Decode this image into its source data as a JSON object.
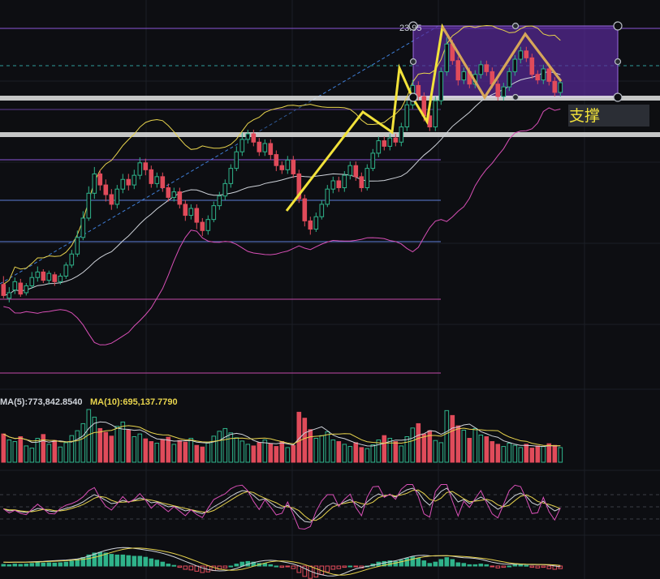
{
  "colors": {
    "background": "#0d0e12",
    "up": "#2fb38a",
    "down": "#e04b5a",
    "ma_yellow": "#e8d44d",
    "ma_white": "#cfd3da",
    "band_pink": "#d84fb6",
    "hline_purple": "#8a55d8",
    "hline_blue": "#5d7fd8",
    "hline_magenta": "#c24aa8",
    "support_zone": "#e6e6e6",
    "pattern_yellow": "#f2e23a",
    "pattern_orange": "#d6a55a",
    "box_fill": "#5a2a9a",
    "grid": "#1c1f26"
  },
  "labels": {
    "price_tag": "23.95",
    "support": "支撑",
    "volume_ma5": "MA(5):773,842.8540",
    "volume_ma10": "MA(10):695,137.7790"
  },
  "chart_data": {
    "type": "candlestick",
    "title": "",
    "candles": [
      [
        27.0,
        26.2,
        27.6,
        26.0
      ],
      [
        26.0,
        26.4,
        26.8,
        25.7
      ],
      [
        26.6,
        27.2,
        27.5,
        26.3
      ],
      [
        27.1,
        26.3,
        27.4,
        26.1
      ],
      [
        26.4,
        26.9,
        27.1,
        26.2
      ],
      [
        26.9,
        27.5,
        27.9,
        26.7
      ],
      [
        27.5,
        27.9,
        28.3,
        27.2
      ],
      [
        27.9,
        27.3,
        28.1,
        27.1
      ],
      [
        27.3,
        27.8,
        28.0,
        27.0
      ],
      [
        27.7,
        27.2,
        27.9,
        26.9
      ],
      [
        27.2,
        27.6,
        27.8,
        27.0
      ],
      [
        27.6,
        28.4,
        28.6,
        27.4
      ],
      [
        28.4,
        29.2,
        29.5,
        28.2
      ],
      [
        29.2,
        30.4,
        30.9,
        29.0
      ],
      [
        30.4,
        31.8,
        32.3,
        30.2
      ],
      [
        31.8,
        33.6,
        34.1,
        31.6
      ],
      [
        33.6,
        35.0,
        35.5,
        33.2
      ],
      [
        35.0,
        34.2,
        35.3,
        33.8
      ],
      [
        34.2,
        33.5,
        34.6,
        33.0
      ],
      [
        33.5,
        32.8,
        33.9,
        32.4
      ],
      [
        32.8,
        33.9,
        34.2,
        32.5
      ],
      [
        33.9,
        34.6,
        35.0,
        33.6
      ],
      [
        34.6,
        34.2,
        35.0,
        33.8
      ],
      [
        34.2,
        34.9,
        35.3,
        33.9
      ],
      [
        34.9,
        35.8,
        36.2,
        34.6
      ],
      [
        35.8,
        35.3,
        36.1,
        34.9
      ],
      [
        35.3,
        34.3,
        35.6,
        34.0
      ],
      [
        34.3,
        34.8,
        35.1,
        34.0
      ],
      [
        34.8,
        34.0,
        35.1,
        33.7
      ],
      [
        34.0,
        33.3,
        34.3,
        33.0
      ],
      [
        33.3,
        33.7,
        34.0,
        33.0
      ],
      [
        33.7,
        32.8,
        34.0,
        32.5
      ],
      [
        32.8,
        32.0,
        33.1,
        31.6
      ],
      [
        32.0,
        32.5,
        32.8,
        31.7
      ],
      [
        32.5,
        31.5,
        32.8,
        31.0
      ],
      [
        31.5,
        30.9,
        31.8,
        30.5
      ],
      [
        30.9,
        31.7,
        32.0,
        30.6
      ],
      [
        31.7,
        32.7,
        33.0,
        31.5
      ],
      [
        32.7,
        33.4,
        33.7,
        32.4
      ],
      [
        33.4,
        34.3,
        34.6,
        33.1
      ],
      [
        34.3,
        35.4,
        35.7,
        34.0
      ],
      [
        35.4,
        36.6,
        37.0,
        35.2
      ],
      [
        36.6,
        37.5,
        38.0,
        36.3
      ],
      [
        37.5,
        37.9,
        38.2,
        37.2
      ],
      [
        37.9,
        37.3,
        38.2,
        37.0
      ],
      [
        37.3,
        36.6,
        37.6,
        36.3
      ],
      [
        36.6,
        37.2,
        37.5,
        36.3
      ],
      [
        37.2,
        36.4,
        37.5,
        36.0
      ],
      [
        36.4,
        35.6,
        36.7,
        35.2
      ],
      [
        35.6,
        35.3,
        35.9,
        35.0
      ],
      [
        35.3,
        36.0,
        36.3,
        35.0
      ],
      [
        36.0,
        35.0,
        36.3,
        34.7
      ],
      [
        35.0,
        33.2,
        35.3,
        32.9
      ],
      [
        33.2,
        31.6,
        33.5,
        31.2
      ],
      [
        31.6,
        31.0,
        31.9,
        30.6
      ],
      [
        31.0,
        31.9,
        32.2,
        30.8
      ],
      [
        31.9,
        32.8,
        33.1,
        31.7
      ],
      [
        32.8,
        33.9,
        34.2,
        32.6
      ],
      [
        33.9,
        34.5,
        34.8,
        33.6
      ],
      [
        34.5,
        34.0,
        34.8,
        33.7
      ],
      [
        34.0,
        34.9,
        35.2,
        33.7
      ],
      [
        34.9,
        35.6,
        35.9,
        34.6
      ],
      [
        35.6,
        34.8,
        35.9,
        34.5
      ],
      [
        34.8,
        34.0,
        35.1,
        33.7
      ],
      [
        34.0,
        35.4,
        35.7,
        33.8
      ],
      [
        35.4,
        36.5,
        36.8,
        35.2
      ],
      [
        36.5,
        37.4,
        37.7,
        36.2
      ],
      [
        37.4,
        37.0,
        37.7,
        36.7
      ],
      [
        37.0,
        37.6,
        37.9,
        36.7
      ],
      [
        37.6,
        37.3,
        37.9,
        37.0
      ],
      [
        37.3,
        38.4,
        38.7,
        37.0
      ],
      [
        38.4,
        40.0,
        40.3,
        38.1
      ],
      [
        40.0,
        41.4,
        41.8,
        39.7
      ],
      [
        41.4,
        40.6,
        41.7,
        40.3
      ],
      [
        40.6,
        39.2,
        40.9,
        38.8
      ],
      [
        39.2,
        38.4,
        39.5,
        38.1
      ],
      [
        38.4,
        40.3,
        40.6,
        38.1
      ],
      [
        40.3,
        42.4,
        42.7,
        40.0
      ],
      [
        42.4,
        44.4,
        44.9,
        42.1
      ],
      [
        44.4,
        43.2,
        44.7,
        42.9
      ],
      [
        43.2,
        41.8,
        43.5,
        41.4
      ],
      [
        41.8,
        42.4,
        42.7,
        41.5
      ],
      [
        42.4,
        41.5,
        42.7,
        41.2
      ],
      [
        41.5,
        42.2,
        42.5,
        41.2
      ],
      [
        42.2,
        42.9,
        43.2,
        41.9
      ],
      [
        42.9,
        42.4,
        43.2,
        42.1
      ],
      [
        42.4,
        41.5,
        42.7,
        41.2
      ],
      [
        41.5,
        40.6,
        41.8,
        40.3
      ],
      [
        40.6,
        41.3,
        41.6,
        40.3
      ],
      [
        41.3,
        42.4,
        42.7,
        41.0
      ],
      [
        42.4,
        43.3,
        43.6,
        42.1
      ],
      [
        43.3,
        43.9,
        44.2,
        43.0
      ],
      [
        43.9,
        43.4,
        44.2,
        43.1
      ],
      [
        43.4,
        42.2,
        43.7,
        41.9
      ],
      [
        42.2,
        41.8,
        42.5,
        41.5
      ],
      [
        41.8,
        42.6,
        42.9,
        41.5
      ],
      [
        42.6,
        41.7,
        42.9,
        41.4
      ],
      [
        41.7,
        40.9,
        42.0,
        40.6
      ],
      [
        40.9,
        41.6,
        41.9,
        40.6
      ]
    ],
    "volume": [
      52,
      41,
      38,
      47,
      30,
      26,
      44,
      51,
      33,
      40,
      28,
      36,
      49,
      58,
      71,
      97,
      83,
      62,
      55,
      48,
      66,
      74,
      59,
      47,
      52,
      43,
      38,
      35,
      42,
      46,
      33,
      40,
      37,
      44,
      31,
      28,
      36,
      48,
      57,
      62,
      54,
      45,
      39,
      33,
      30,
      36,
      41,
      34,
      29,
      38,
      27,
      31,
      92,
      81,
      60,
      44,
      49,
      56,
      41,
      38,
      33,
      29,
      36,
      27,
      25,
      32,
      41,
      49,
      44,
      38,
      30,
      47,
      63,
      71,
      52,
      58,
      40,
      36,
      95,
      86,
      67,
      59,
      44,
      62,
      50,
      47,
      38,
      33,
      29,
      35,
      31,
      27,
      33,
      26,
      30,
      29,
      34,
      31,
      27
    ],
    "kdj": [
      0.45,
      0.4,
      0.42,
      0.38,
      0.36,
      0.4,
      0.46,
      0.44,
      0.4,
      0.38,
      0.42,
      0.46,
      0.5,
      0.55,
      0.62,
      0.72,
      0.8,
      0.74,
      0.66,
      0.58,
      0.6,
      0.66,
      0.62,
      0.66,
      0.72,
      0.68,
      0.6,
      0.62,
      0.56,
      0.5,
      0.52,
      0.46,
      0.4,
      0.43,
      0.37,
      0.33,
      0.4,
      0.5,
      0.58,
      0.66,
      0.76,
      0.84,
      0.9,
      0.88,
      0.78,
      0.66,
      0.7,
      0.6,
      0.5,
      0.46,
      0.54,
      0.42,
      0.26,
      0.14,
      0.12,
      0.24,
      0.38,
      0.52,
      0.6,
      0.54,
      0.62,
      0.68,
      0.58,
      0.48,
      0.62,
      0.74,
      0.82,
      0.76,
      0.8,
      0.74,
      0.84,
      0.92,
      0.96,
      0.86,
      0.66,
      0.54,
      0.72,
      0.88,
      0.96,
      0.8,
      0.62,
      0.68,
      0.58,
      0.66,
      0.74,
      0.66,
      0.54,
      0.44,
      0.52,
      0.66,
      0.78,
      0.84,
      0.76,
      0.6,
      0.54,
      0.64,
      0.5,
      0.4,
      0.46
    ],
    "macd": [
      0.05,
      0.04,
      0.06,
      0.05,
      0.06,
      0.08,
      0.1,
      0.09,
      0.1,
      0.09,
      0.1,
      0.12,
      0.15,
      0.2,
      0.26,
      0.34,
      0.4,
      0.42,
      0.4,
      0.36,
      0.34,
      0.34,
      0.32,
      0.3,
      0.3,
      0.27,
      0.22,
      0.18,
      0.12,
      0.06,
      0.02,
      -0.04,
      -0.1,
      -0.12,
      -0.16,
      -0.2,
      -0.18,
      -0.14,
      -0.1,
      -0.06,
      0.0,
      0.06,
      0.12,
      0.14,
      0.12,
      0.08,
      0.08,
      0.04,
      0.0,
      -0.04,
      -0.02,
      -0.08,
      -0.2,
      -0.32,
      -0.38,
      -0.34,
      -0.26,
      -0.18,
      -0.1,
      -0.08,
      -0.04,
      0.0,
      -0.02,
      -0.06,
      0.0,
      0.06,
      0.12,
      0.14,
      0.16,
      0.14,
      0.18,
      0.24,
      0.28,
      0.24,
      0.16,
      0.08,
      0.12,
      0.2,
      0.26,
      0.2,
      0.1,
      0.08,
      0.04,
      0.04,
      0.06,
      0.04,
      -0.02,
      -0.06,
      -0.04,
      0.0,
      0.04,
      0.06,
      0.02,
      -0.04,
      -0.06,
      -0.04,
      -0.08,
      -0.1,
      -0.08
    ],
    "ylim": [
      20,
      47
    ]
  }
}
